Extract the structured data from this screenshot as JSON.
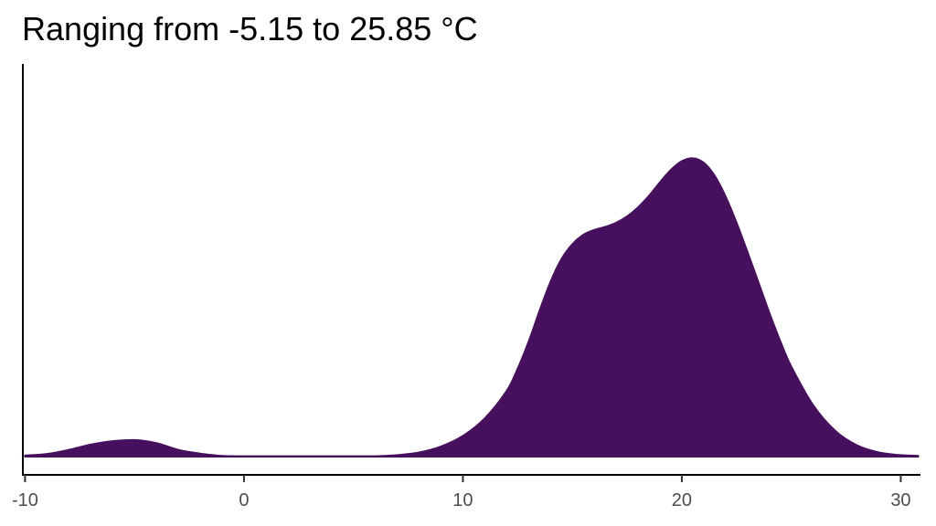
{
  "chart_data": {
    "type": "area",
    "title": "Ranging from -5.15 to 25.85 °C",
    "xlabel": "",
    "ylabel": "",
    "xlim": [
      -10.1,
      30.9
    ],
    "ylim": [
      0,
      0.1
    ],
    "x_ticks": [
      -10,
      0,
      10,
      20,
      30
    ],
    "x_tick_labels": [
      "-10",
      "0",
      "10",
      "20",
      "30"
    ],
    "grid": false,
    "fill_color": "#46105e",
    "series": [
      {
        "x": [
          -10,
          -9,
          -8,
          -7,
          -6,
          -5,
          -4,
          -3,
          -2,
          -1,
          0,
          2,
          4,
          6,
          7,
          8,
          9,
          10,
          11,
          12,
          12.5,
          13,
          13.5,
          14,
          14.5,
          15,
          15.5,
          16,
          16.5,
          17,
          17.5,
          18,
          18.5,
          19,
          19.5,
          20,
          20.5,
          21,
          21.5,
          22,
          22.5,
          23,
          23.5,
          24,
          24.5,
          25,
          26,
          27,
          28,
          29,
          30,
          30.8
        ],
        "y": [
          0.0003,
          0.0007,
          0.0018,
          0.0032,
          0.0041,
          0.0044,
          0.0036,
          0.0018,
          0.0008,
          0.0002,
          0.0001,
          0.0001,
          0.0001,
          0.0001,
          0.0004,
          0.0011,
          0.0027,
          0.0055,
          0.0102,
          0.0175,
          0.0234,
          0.0306,
          0.0388,
          0.0465,
          0.0526,
          0.0566,
          0.0591,
          0.0604,
          0.0612,
          0.0623,
          0.064,
          0.0664,
          0.0695,
          0.0731,
          0.0764,
          0.0787,
          0.0795,
          0.0783,
          0.0748,
          0.0693,
          0.0623,
          0.0545,
          0.0464,
          0.0383,
          0.0307,
          0.024,
          0.0137,
          0.0069,
          0.003,
          0.0011,
          0.0004,
          0.0002
        ]
      }
    ]
  }
}
